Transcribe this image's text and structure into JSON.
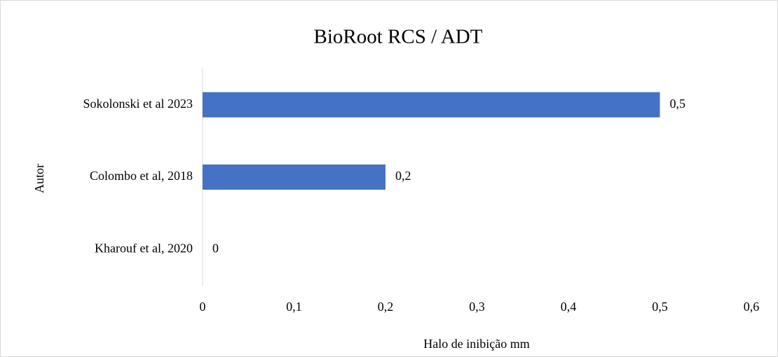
{
  "chart_data": {
    "type": "barh",
    "title": "BioRoot RCS / ADT",
    "xlabel": "Halo de inibição mm",
    "ylabel": "Autor",
    "categories": [
      "Sokolonski et al 2023",
      "Colombo et al, 2018",
      "Kharouf et al, 2020"
    ],
    "values": [
      0.5,
      0.2,
      0
    ],
    "value_labels": [
      "0,5",
      "0,2",
      "0"
    ],
    "color": "#4472c4",
    "xlim": [
      0,
      0.6
    ],
    "xticks": [
      0,
      {
        "value": 0.1,
        "label": "0,1"
      },
      {
        "value": 0.2,
        "label": "0,2"
      },
      {
        "value": 0.3,
        "label": "0,3"
      },
      {
        "value": 0.4,
        "label": "0,4"
      },
      {
        "value": 0.5,
        "label": "0,5"
      },
      {
        "value": 0.6,
        "label": "0,6"
      }
    ],
    "grid": false
  }
}
